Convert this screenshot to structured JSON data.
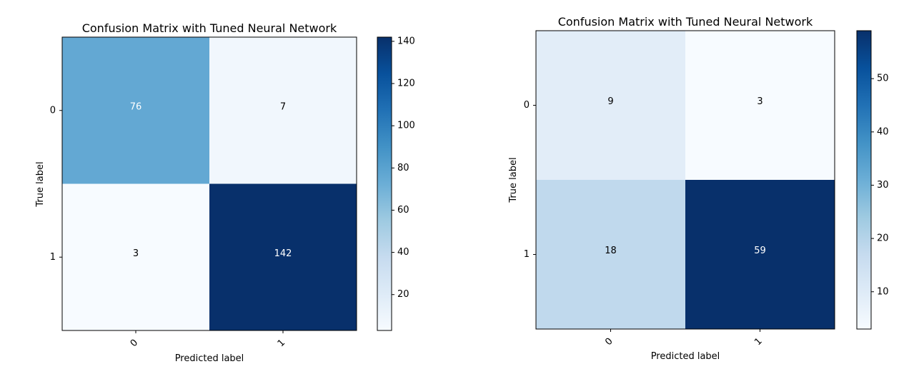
{
  "chart_data": [
    {
      "type": "heatmap",
      "title": "Confusion Matrix with Tuned Neural Network",
      "xlabel": "Predicted label",
      "ylabel": "True label",
      "x_categories": [
        "0",
        "1"
      ],
      "y_categories": [
        "0",
        "1"
      ],
      "values": [
        [
          76,
          7
        ],
        [
          3,
          142
        ]
      ],
      "colormap": "Blues",
      "colorbar": {
        "range": [
          3,
          142
        ],
        "ticks": [
          "20",
          "40",
          "60",
          "80",
          "100",
          "120",
          "140"
        ]
      }
    },
    {
      "type": "heatmap",
      "title": "Confusion Matrix with Tuned Neural Network",
      "xlabel": "Predicted label",
      "ylabel": "True label",
      "x_categories": [
        "0",
        "1"
      ],
      "y_categories": [
        "0",
        "1"
      ],
      "values": [
        [
          9,
          3
        ],
        [
          18,
          59
        ]
      ],
      "colormap": "Blues",
      "colorbar": {
        "range": [
          3,
          59
        ],
        "ticks": [
          "10",
          "20",
          "30",
          "40",
          "50"
        ]
      }
    }
  ]
}
